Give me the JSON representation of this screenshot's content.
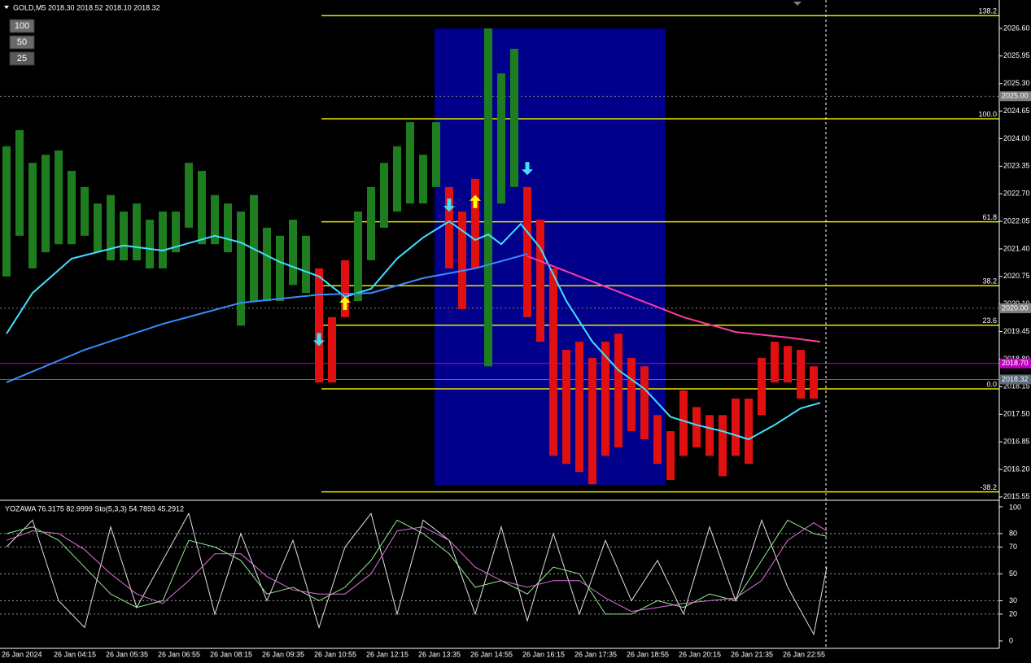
{
  "chart_data": [
    {
      "type": "price_bars",
      "title": "GOLD,M5  2018.30 2018.52 2018.10 2018.32",
      "buttons": [
        "100",
        "50",
        "25"
      ],
      "ylim": [
        2015.49,
        2027.27
      ],
      "yticks": [
        {
          "value": 2026.6,
          "label": "2026.60"
        },
        {
          "value": 2025.95,
          "label": "2025.95"
        },
        {
          "value": 2025.3,
          "label": "2025.30"
        },
        {
          "value": 2024.65,
          "label": "2024.65"
        },
        {
          "value": 2024,
          "label": "2024.00"
        },
        {
          "value": 2023.35,
          "label": "2023.35"
        },
        {
          "value": 2022.7,
          "label": "2022.70"
        },
        {
          "value": 2022.05,
          "label": "2022.05"
        },
        {
          "value": 2021.4,
          "label": "2021.40"
        },
        {
          "value": 2020.75,
          "label": "2020.75"
        },
        {
          "value": 2020.1,
          "label": "2020.10"
        },
        {
          "value": 2019.45,
          "label": "2019.45"
        },
        {
          "value": 2018.8,
          "label": "2018.80"
        },
        {
          "value": 2018.15,
          "label": "2018.15"
        },
        {
          "value": 2017.5,
          "label": "2017.50"
        },
        {
          "value": 2016.85,
          "label": "2016.85"
        },
        {
          "value": 2016.2,
          "label": "2016.20"
        },
        {
          "value": 2015.55,
          "label": "2015.55"
        }
      ],
      "x_labels": [
        "26 Jan 2024",
        "26 Jan 04:15",
        "26 Jan 05:35",
        "26 Jan 06:55",
        "26 Jan 08:15",
        "26 Jan 09:35",
        "26 Jan 10:55",
        "26 Jan 12:15",
        "26 Jan 13:35",
        "26 Jan 14:55",
        "26 Jan 16:15",
        "26 Jan 17:35",
        "26 Jan 18:55",
        "26 Jan 20:15",
        "26 Jan 21:35",
        "26 Jan 22:55"
      ],
      "bars": {
        "high": [
          2023.82,
          2024.2,
          2023.43,
          2023.62,
          2023.72,
          2023.24,
          2022.86,
          2022.47,
          2022.67,
          2022.28,
          2022.47,
          2022.09,
          2022.28,
          2022.28,
          2023.43,
          2023.24,
          2022.67,
          2022.47,
          2022.28,
          2022.67,
          2021.9,
          2021.71,
          2022.09,
          2021.71,
          2020.94,
          2019.79,
          2021.13,
          2022.28,
          2022.86,
          2023.43,
          2023.82,
          2024.39,
          2023.62,
          2024.39,
          2022.86,
          2022.28,
          2023.05,
          2026.6,
          2025.54,
          2026.12,
          2022.86,
          2022.09,
          2020.94,
          2019.02,
          2019.21,
          2018.83,
          2019.21,
          2019.4,
          2018.83,
          2018.63,
          2017.48,
          2017.1,
          2018.06,
          2017.67,
          2017.48,
          2017.48,
          2017.87,
          2017.87,
          2018.83,
          2019.21,
          2019.11,
          2019.02,
          2018.63
        ],
        "low": [
          2020.75,
          2021.71,
          2020.94,
          2021.32,
          2021.51,
          2021.51,
          2021.71,
          2021.32,
          2021.13,
          2021.13,
          2021.13,
          2020.94,
          2020.94,
          2021.32,
          2021.9,
          2021.51,
          2021.51,
          2021.32,
          2019.59,
          2020.17,
          2020.17,
          2020.17,
          2020.55,
          2020.36,
          2018.25,
          2018.25,
          2019.79,
          2020.17,
          2021.13,
          2021.9,
          2022.28,
          2022.47,
          2022.47,
          2022.86,
          2020.94,
          2019.98,
          2020.94,
          2018.63,
          2022.47,
          2022.86,
          2019.79,
          2019.21,
          2016.52,
          2016.33,
          2016.14,
          2015.85,
          2016.52,
          2016.72,
          2017.1,
          2016.91,
          2016.33,
          2015.95,
          2016.52,
          2016.72,
          2016.52,
          2016.04,
          2016.52,
          2016.33,
          2017.48,
          2018.25,
          2018.25,
          2017.87,
          2017.87
        ],
        "colors": [
          "#1e7d1e",
          "#1e7d1e",
          "#1e7d1e",
          "#1e7d1e",
          "#1e7d1e",
          "#1e7d1e",
          "#1e7d1e",
          "#1e7d1e",
          "#1e7d1e",
          "#1e7d1e",
          "#1e7d1e",
          "#1e7d1e",
          "#1e7d1e",
          "#1e7d1e",
          "#1e7d1e",
          "#1e7d1e",
          "#1e7d1e",
          "#1e7d1e",
          "#1e7d1e",
          "#1e7d1e",
          "#1e7d1e",
          "#1e7d1e",
          "#1e7d1e",
          "#1e7d1e",
          "#e01010",
          "#e01010",
          "#e01010",
          "#1e7d1e",
          "#1e7d1e",
          "#1e7d1e",
          "#1e7d1e",
          "#1e7d1e",
          "#1e7d1e",
          "#1e7d1e",
          "#e01010",
          "#e01010",
          "#e01010",
          "#1e7d1e",
          "#1e7d1e",
          "#1e7d1e",
          "#e01010",
          "#e01010",
          "#e01010",
          "#e01010",
          "#e01010",
          "#e01010",
          "#e01010",
          "#e01010",
          "#e01010",
          "#e01010",
          "#e01010",
          "#e01010",
          "#e01010",
          "#e01010",
          "#e01010",
          "#e01010",
          "#e01010",
          "#e01010",
          "#e01010",
          "#e01010",
          "#e01010",
          "#e01010",
          "#e01010"
        ]
      },
      "lines": [
        {
          "color": "#40e0ff",
          "x": [
            0,
            2,
            5,
            9,
            12,
            16,
            18,
            21,
            24,
            26,
            28,
            30,
            32,
            34,
            36,
            37,
            38,
            39.5,
            41,
            43,
            45,
            47,
            49,
            51,
            53,
            55,
            57,
            59,
            61,
            62.5
          ],
          "values": [
            2019.4,
            2020.36,
            2021.17,
            2021.48,
            2021.36,
            2021.71,
            2021.55,
            2021.09,
            2020.75,
            2020.27,
            2020.46,
            2021.17,
            2021.67,
            2022.05,
            2021.61,
            2021.74,
            2021.51,
            2021.99,
            2021.42,
            2020.17,
            2019.21,
            2018.54,
            2018.1,
            2017.44,
            2017.25,
            2017.1,
            2016.91,
            2017.25,
            2017.64,
            2017.77
          ]
        },
        {
          "color": "#3a8cff",
          "x": [
            0,
            6,
            12,
            18,
            24,
            28,
            32,
            36,
            40
          ],
          "values": [
            2018.25,
            2019.02,
            2019.63,
            2020.13,
            2020.32,
            2020.36,
            2020.71,
            2020.94,
            2021.28
          ]
        },
        {
          "color": "#ff3aa0",
          "x": [
            40,
            44,
            48,
            52,
            56,
            60,
            62.5
          ],
          "values": [
            2021.23,
            2020.75,
            2020.27,
            2019.79,
            2019.44,
            2019.31,
            2019.21
          ]
        }
      ],
      "arrows": [
        {
          "x": 24,
          "price": 2019.11,
          "color": "#40e0ff",
          "dir": "down"
        },
        {
          "x": 26,
          "price": 2020.27,
          "color": "#ffff00",
          "dir": "up"
        },
        {
          "x": 34,
          "price": 2022.28,
          "color": "#40e0ff",
          "dir": "down"
        },
        {
          "x": 36,
          "price": 2022.67,
          "color": "#ffff00",
          "dir": "up"
        },
        {
          "x": 40,
          "price": 2023.14,
          "color": "#40e0ff",
          "dir": "down"
        }
      ],
      "fib_levels": [
        {
          "label": "138.2",
          "price": 2026.9
        },
        {
          "label": "100.0",
          "price": 2024.47
        },
        {
          "label": "61.8",
          "price": 2022.04
        },
        {
          "label": "38.2",
          "price": 2020.53
        },
        {
          "label": "23.6",
          "price": 2019.6
        },
        {
          "label": "0.0",
          "price": 2018.1
        },
        {
          "label": "-38.2",
          "price": 2015.67
        }
      ],
      "price_markers": [
        {
          "value": 2025,
          "label": "2025.00",
          "color": "#808080",
          "dashed": true
        },
        {
          "value": 2020,
          "label": "2020.00",
          "color": "#808080",
          "dashed": true
        },
        {
          "value": 2018.7,
          "label": "2018.70",
          "color": "#c000c0",
          "dashed": false
        },
        {
          "value": 2018.32,
          "label": "2018.32",
          "color": "#5a6a78",
          "dashed": false
        }
      ]
    },
    {
      "type": "oscillator",
      "title": "YOZAWA 76.3175 82.9999  Sto(5,3,3) 54.7893 45.2912",
      "ylim": [
        -5.5,
        103.6
      ],
      "yticks": [
        100,
        80,
        70,
        50,
        30,
        20,
        0
      ],
      "x": [
        0,
        2,
        4,
        6,
        8,
        10,
        12,
        14,
        16,
        18,
        20,
        22,
        24,
        26,
        28,
        30,
        32,
        34,
        36,
        38,
        40,
        42,
        44,
        46,
        48,
        50,
        52,
        54,
        56,
        58,
        60,
        62,
        63
      ],
      "series": [
        {
          "color": "#e0e0e0",
          "values": [
            70,
            90,
            30,
            10,
            85,
            25,
            60,
            95,
            20,
            80,
            30,
            75,
            10,
            70,
            95,
            20,
            90,
            75,
            20,
            85,
            15,
            80,
            20,
            75,
            30,
            60,
            20,
            85,
            30,
            90,
            40,
            5,
            55
          ]
        },
        {
          "color": "#90ee90",
          "values": [
            80,
            85,
            75,
            55,
            35,
            25,
            30,
            75,
            70,
            60,
            35,
            40,
            30,
            40,
            60,
            90,
            80,
            65,
            40,
            45,
            35,
            55,
            50,
            20,
            20,
            30,
            25,
            35,
            30,
            60,
            90,
            80,
            78
          ]
        },
        {
          "color": "#e070e0",
          "values": [
            75,
            82,
            80,
            68,
            50,
            35,
            28,
            45,
            65,
            65,
            48,
            38,
            35,
            35,
            50,
            82,
            85,
            75,
            55,
            45,
            40,
            45,
            45,
            32,
            22,
            25,
            28,
            30,
            32,
            45,
            75,
            88,
            82
          ]
        }
      ]
    }
  ]
}
